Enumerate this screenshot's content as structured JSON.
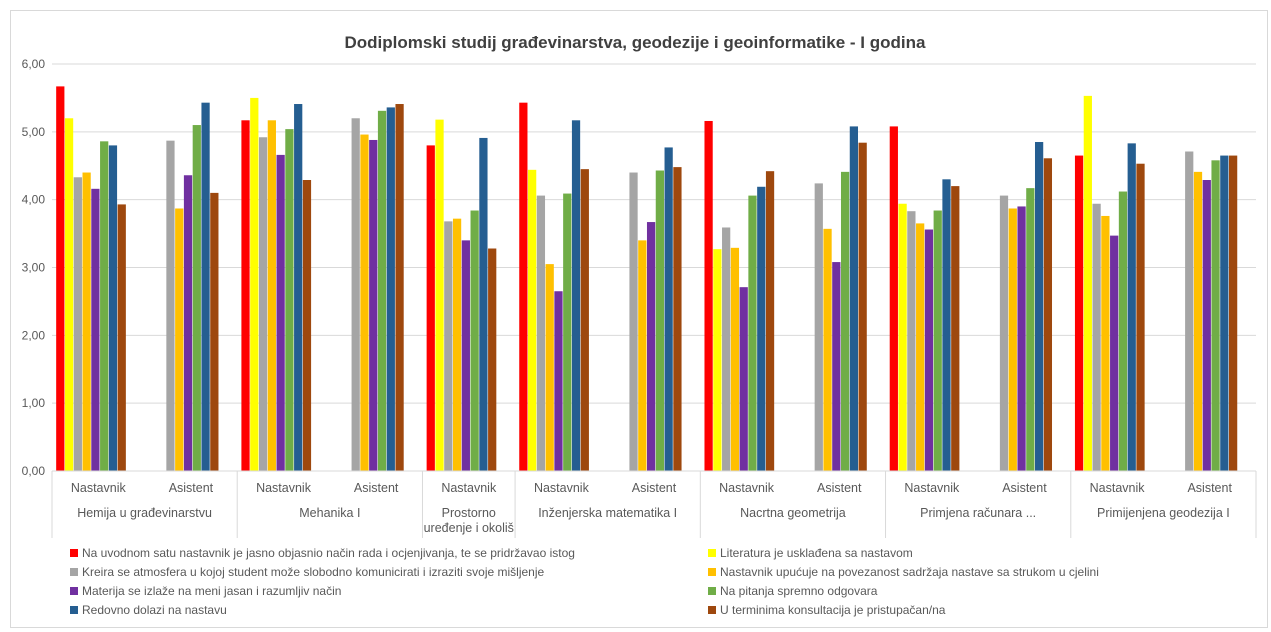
{
  "chart_data": {
    "type": "bar",
    "title": "Dodiplomski studij građevinarstva, geodezije i geoinformatike - I godina",
    "ylim": [
      0,
      6
    ],
    "yticks": [
      "0,00",
      "1,00",
      "2,00",
      "3,00",
      "4,00",
      "5,00",
      "6,00"
    ],
    "grid": true,
    "legend_position": "bottom",
    "categories": [
      {
        "role": "Nastavnik",
        "course": "Hemija u građevinarstvu"
      },
      {
        "role": "Asistent",
        "course": "Hemija u građevinarstvu"
      },
      {
        "role": "Nastavnik",
        "course": "Mehanika I"
      },
      {
        "role": "Asistent",
        "course": "Mehanika I"
      },
      {
        "role": "Nastavnik",
        "course": "Prostorno uređenje i okoliš"
      },
      {
        "role": "Nastavnik",
        "course": "Inženjerska matematika I"
      },
      {
        "role": "Asistent",
        "course": "Inženjerska matematika I"
      },
      {
        "role": "Nastavnik",
        "course": "Nacrtna geometrija"
      },
      {
        "role": "Asistent",
        "course": "Nacrtna geometrija"
      },
      {
        "role": "Nastavnik",
        "course": "Primjena računara ..."
      },
      {
        "role": "Asistent",
        "course": "Primjena računara ..."
      },
      {
        "role": "Nastavnik",
        "course": "Primijenjena geodezija I"
      },
      {
        "role": "Asistent",
        "course": "Primijenjena geodezija I"
      }
    ],
    "groups": [
      {
        "label": "Hemija u građevinarstvu",
        "span": 2
      },
      {
        "label": "Mehanika I",
        "span": 2
      },
      {
        "label": "Prostorno uređenje i okoliš",
        "span": 1
      },
      {
        "label": "Inženjerska matematika I",
        "span": 2
      },
      {
        "label": "Nacrtna geometrija",
        "span": 2
      },
      {
        "label": "Primjena računara ...",
        "span": 2
      },
      {
        "label": "Primijenjena geodezija I",
        "span": 2
      }
    ],
    "series": [
      {
        "name": "Na uvodnom satu nastavnik je jasno objasnio način rada i ocjenjivanja, te se pridržavao istog",
        "color": "#ff0000",
        "values": [
          5.67,
          null,
          5.17,
          null,
          4.8,
          5.43,
          null,
          5.16,
          null,
          5.08,
          null,
          4.65,
          null
        ]
      },
      {
        "name": "Literatura je usklađena sa nastavom",
        "color": "#ffff00",
        "values": [
          5.2,
          null,
          5.5,
          null,
          5.18,
          4.44,
          null,
          3.27,
          null,
          3.94,
          null,
          5.53,
          null
        ]
      },
      {
        "name": "Kreira se atmosfera u kojoj student može slobodno komunicirati i izraziti svoje mišljenje",
        "color": "#a5a5a5",
        "values": [
          4.33,
          4.87,
          4.92,
          5.2,
          3.68,
          4.06,
          4.4,
          3.59,
          4.24,
          3.83,
          4.06,
          3.94,
          4.71
        ]
      },
      {
        "name": "Nastavnik upućuje na povezanost sadržaja nastave sa strukom u cjelini",
        "color": "#ffc000",
        "values": [
          4.4,
          3.87,
          5.17,
          4.96,
          3.72,
          3.05,
          3.4,
          3.29,
          3.57,
          3.65,
          3.87,
          3.76,
          4.41
        ]
      },
      {
        "name": "Materija se izlaže na meni jasan i razumljiv način",
        "color": "#7030a0",
        "values": [
          4.16,
          4.36,
          4.66,
          4.88,
          3.4,
          2.65,
          3.67,
          2.71,
          3.08,
          3.56,
          3.9,
          3.47,
          4.29
        ]
      },
      {
        "name": "Na pitanja spremno odgovara",
        "color": "#70ad47",
        "values": [
          4.86,
          5.1,
          5.04,
          5.31,
          3.84,
          4.09,
          4.43,
          4.06,
          4.41,
          3.84,
          4.17,
          4.12,
          4.58
        ]
      },
      {
        "name": "Redovno dolazi na nastavu",
        "color": "#255e91",
        "values": [
          4.8,
          5.43,
          5.41,
          5.36,
          4.91,
          5.17,
          4.77,
          4.19,
          5.08,
          4.3,
          4.85,
          4.83,
          4.65
        ]
      },
      {
        "name": "U terminima konsultacija je pristupačan/na",
        "color": "#9e480e",
        "values": [
          3.93,
          4.1,
          4.29,
          5.41,
          3.28,
          4.45,
          4.48,
          4.42,
          4.84,
          4.2,
          4.61,
          4.53,
          4.65
        ]
      }
    ]
  }
}
